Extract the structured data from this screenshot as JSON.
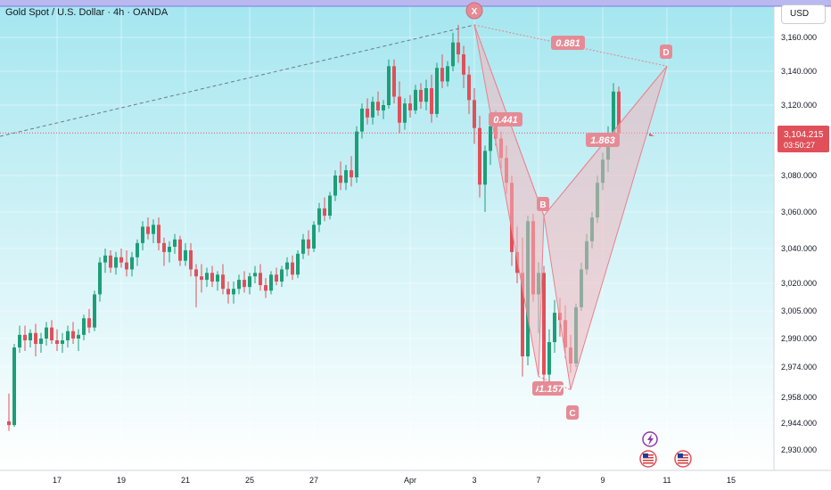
{
  "header": {
    "title": "Gold Spot / U.S. Dollar · 4h · OANDA",
    "currency_button": "USD"
  },
  "price_tag": {
    "price": "3,104.215",
    "countdown": "03:50:27"
  },
  "colors": {
    "up": "#1e9e78",
    "down": "#e0505a",
    "pattern_fill": "#f2b6bd",
    "pattern_stroke": "#e9808c",
    "label_bg": "#e58b96",
    "bg_top": "#a4e6ef",
    "bg_bottom": "#ffffff"
  },
  "icons": [
    "lightning-event-icon",
    "us-flag-icon",
    "us-flag-icon"
  ],
  "chart_data": {
    "type": "candlestick",
    "title": "Gold Spot / U.S. Dollar · 4h · OANDA",
    "y_axis": {
      "ticks": [
        3160,
        3140,
        3120,
        3080,
        3060,
        3040,
        3020,
        3005,
        2990,
        2974,
        2958,
        2944,
        2930
      ],
      "tick_labels": [
        "3,160.000",
        "3,140.000",
        "3,120.000",
        "3,080.000",
        "3,060.000",
        "3,040.000",
        "3,020.000",
        "3,005.000",
        "2,990.000",
        "2,974.000",
        "2,958.000",
        "2,944.000",
        "2,930.000"
      ],
      "ylim": [
        2922,
        3176
      ]
    },
    "x_axis": {
      "tick_labels": [
        "17",
        "19",
        "21",
        "25",
        "27",
        "Apr",
        "3",
        "7",
        "9",
        "11",
        "15"
      ],
      "tick_index": [
        9,
        21,
        33,
        45,
        57,
        75,
        87,
        99,
        111,
        123,
        135
      ]
    },
    "current_price": 3104.2,
    "harmonic_pattern": {
      "points": [
        {
          "name": "X",
          "index": 87,
          "price": 3168
        },
        {
          "name": "A",
          "index": 99,
          "price": 2969
        },
        {
          "name": "B",
          "index": 100,
          "price": 3058
        },
        {
          "name": "C",
          "index": 105,
          "price": 2962
        },
        {
          "name": "D",
          "index": 123,
          "price": 3143
        }
      ],
      "ratios": [
        {
          "label": "0.441",
          "price": 3112
        },
        {
          "label": "0.881"
        },
        {
          "label": "1.157"
        },
        {
          "label": "1.863",
          "price": 3101
        }
      ]
    },
    "candles": [
      [
        2945,
        2960,
        2940,
        2943
      ],
      [
        2943,
        2987,
        2942,
        2985
      ],
      [
        2985,
        2997,
        2982,
        2992
      ],
      [
        2992,
        2997,
        2983,
        2989
      ],
      [
        2989,
        2995,
        2985,
        2993
      ],
      [
        2993,
        2998,
        2980,
        2987
      ],
      [
        2987,
        2993,
        2982,
        2990
      ],
      [
        2990,
        2999,
        2986,
        2996
      ],
      [
        2996,
        3000,
        2987,
        2989
      ],
      [
        2989,
        2995,
        2983,
        2987
      ],
      [
        2987,
        2993,
        2982,
        2989
      ],
      [
        2989,
        2997,
        2985,
        2994
      ],
      [
        2994,
        2999,
        2987,
        2990
      ],
      [
        2990,
        2995,
        2983,
        2992
      ],
      [
        2992,
        3003,
        2989,
        3001
      ],
      [
        3001,
        3006,
        2993,
        2996
      ],
      [
        2996,
        3016,
        2994,
        3014
      ],
      [
        3014,
        3035,
        3010,
        3032
      ],
      [
        3032,
        3040,
        3026,
        3036
      ],
      [
        3036,
        3039,
        3026,
        3029
      ],
      [
        3029,
        3038,
        3025,
        3035
      ],
      [
        3035,
        3040,
        3029,
        3032
      ],
      [
        3032,
        3039,
        3024,
        3028
      ],
      [
        3028,
        3038,
        3024,
        3035
      ],
      [
        3035,
        3045,
        3030,
        3043
      ],
      [
        3043,
        3055,
        3039,
        3052
      ],
      [
        3052,
        3057,
        3045,
        3048
      ],
      [
        3048,
        3056,
        3043,
        3053
      ],
      [
        3053,
        3057,
        3039,
        3043
      ],
      [
        3043,
        3046,
        3030,
        3038
      ],
      [
        3038,
        3044,
        3032,
        3041
      ],
      [
        3041,
        3048,
        3037,
        3045
      ],
      [
        3045,
        3047,
        3030,
        3033
      ],
      [
        3033,
        3043,
        3030,
        3039
      ],
      [
        3039,
        3043,
        3024,
        3028
      ],
      [
        3028,
        3031,
        3007,
        3024
      ],
      [
        3024,
        3031,
        3015,
        3022
      ],
      [
        3022,
        3029,
        3018,
        3026
      ],
      [
        3026,
        3030,
        3018,
        3021
      ],
      [
        3021,
        3027,
        3016,
        3025
      ],
      [
        3025,
        3031,
        3014,
        3017
      ],
      [
        3017,
        3021,
        3009,
        3014
      ],
      [
        3014,
        3021,
        3009,
        3017
      ],
      [
        3017,
        3025,
        3014,
        3022
      ],
      [
        3022,
        3027,
        3015,
        3018
      ],
      [
        3018,
        3026,
        3014,
        3024
      ],
      [
        3024,
        3030,
        3020,
        3026
      ],
      [
        3026,
        3031,
        3016,
        3019
      ],
      [
        3019,
        3023,
        3012,
        3016
      ],
      [
        3016,
        3027,
        3014,
        3025
      ],
      [
        3025,
        3029,
        3019,
        3021
      ],
      [
        3021,
        3030,
        3018,
        3028
      ],
      [
        3028,
        3035,
        3024,
        3032
      ],
      [
        3032,
        3036,
        3022,
        3025
      ],
      [
        3025,
        3039,
        3023,
        3037
      ],
      [
        3037,
        3048,
        3034,
        3045
      ],
      [
        3045,
        3050,
        3036,
        3040
      ],
      [
        3040,
        3055,
        3038,
        3053
      ],
      [
        3053,
        3065,
        3049,
        3062
      ],
      [
        3062,
        3068,
        3055,
        3058
      ],
      [
        3058,
        3071,
        3056,
        3069
      ],
      [
        3069,
        3083,
        3066,
        3080
      ],
      [
        3080,
        3088,
        3072,
        3076
      ],
      [
        3076,
        3086,
        3072,
        3083
      ],
      [
        3083,
        3091,
        3074,
        3079
      ],
      [
        3079,
        3108,
        3076,
        3105
      ],
      [
        3105,
        3121,
        3101,
        3118
      ],
      [
        3118,
        3124,
        3109,
        3113
      ],
      [
        3113,
        3125,
        3109,
        3122
      ],
      [
        3122,
        3128,
        3114,
        3117
      ],
      [
        3117,
        3123,
        3112,
        3120
      ],
      [
        3120,
        3147,
        3118,
        3143
      ],
      [
        3143,
        3147,
        3121,
        3125
      ],
      [
        3125,
        3134,
        3104,
        3110
      ],
      [
        3110,
        3124,
        3106,
        3121
      ],
      [
        3121,
        3126,
        3113,
        3117
      ],
      [
        3117,
        3132,
        3115,
        3129
      ],
      [
        3129,
        3133,
        3118,
        3122
      ],
      [
        3122,
        3135,
        3117,
        3130
      ],
      [
        3130,
        3138,
        3110,
        3115
      ],
      [
        3115,
        3145,
        3113,
        3142
      ],
      [
        3142,
        3150,
        3130,
        3134
      ],
      [
        3134,
        3146,
        3131,
        3143
      ],
      [
        3143,
        3163,
        3140,
        3157
      ],
      [
        3157,
        3168,
        3145,
        3150
      ],
      [
        3150,
        3155,
        3130,
        3138
      ],
      [
        3138,
        3143,
        3115,
        3123
      ],
      [
        3123,
        3130,
        3098,
        3107
      ],
      [
        3107,
        3114,
        3068,
        3075
      ],
      [
        3075,
        3097,
        3060,
        3094
      ],
      [
        3094,
        3112,
        3086,
        3108
      ],
      [
        3108,
        3117,
        3097,
        3101
      ],
      [
        3101,
        3105,
        3084,
        3090
      ],
      [
        3090,
        3097,
        3070,
        3076
      ],
      [
        3076,
        3080,
        3030,
        3038
      ],
      [
        3038,
        3052,
        3020,
        3026
      ],
      [
        3026,
        3046,
        2969,
        2980
      ],
      [
        2980,
        3058,
        2975,
        3055
      ],
      [
        3055,
        3059,
        3010,
        3014
      ],
      [
        3014,
        3032,
        2993,
        3026
      ],
      [
        3026,
        3030,
        2962,
        2970
      ],
      [
        2970,
        2995,
        2964,
        2988
      ],
      [
        2988,
        3011,
        2982,
        3004
      ],
      [
        3004,
        3012,
        2991,
        3000
      ],
      [
        3000,
        3008,
        2979,
        2985
      ],
      [
        2985,
        2992,
        2971,
        2976
      ],
      [
        2976,
        3009,
        2974,
        3007
      ],
      [
        3007,
        3032,
        3005,
        3028
      ],
      [
        3028,
        3048,
        3025,
        3044
      ],
      [
        3044,
        3060,
        3040,
        3057
      ],
      [
        3057,
        3080,
        3054,
        3076
      ],
      [
        3076,
        3093,
        3072,
        3089
      ],
      [
        3089,
        3108,
        3082,
        3104
      ],
      [
        3104,
        3133,
        3100,
        3128
      ],
      [
        3128,
        3131,
        3097,
        3104
      ]
    ]
  }
}
